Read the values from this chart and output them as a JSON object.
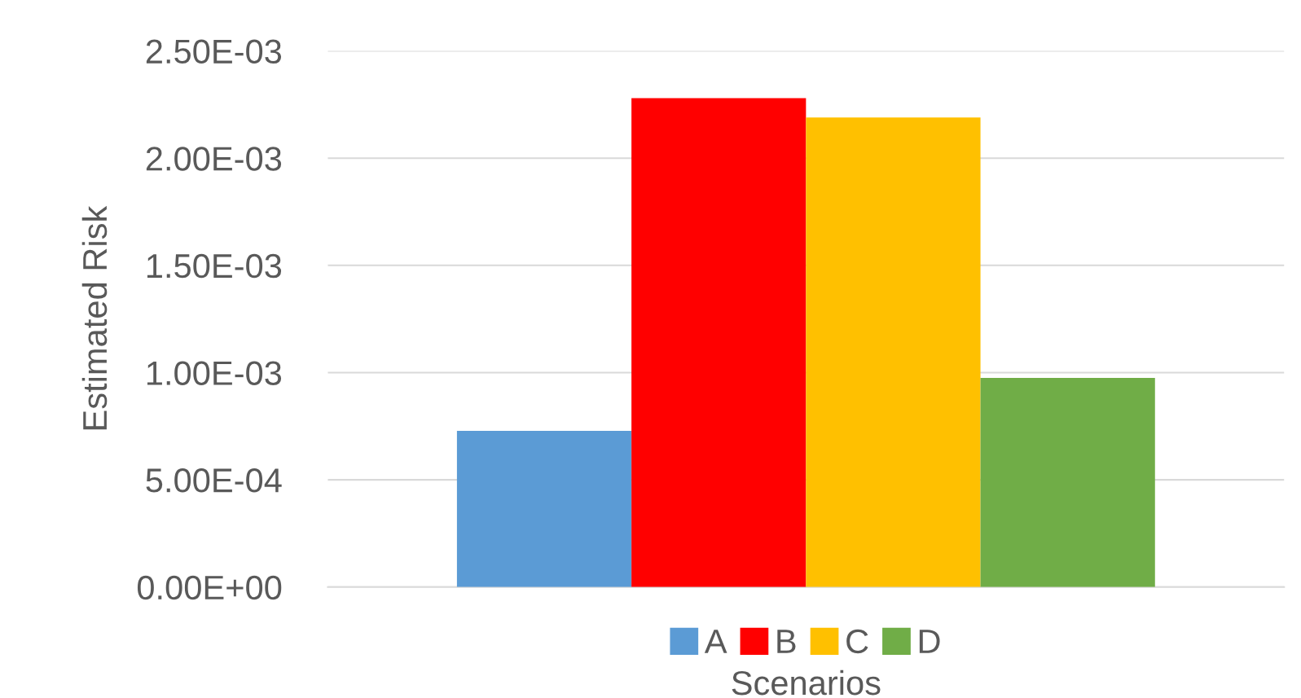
{
  "chart_data": {
    "type": "bar",
    "xlabel": "Scenarios",
    "ylabel": "Estimated Risk",
    "categories": [
      null
    ],
    "series": [
      {
        "name": "A",
        "color": "#5b9bd5",
        "values": [
          0.000728
        ]
      },
      {
        "name": "B",
        "color": "#ff0000",
        "values": [
          0.00228
        ]
      },
      {
        "name": "C",
        "color": "#ffc000",
        "values": [
          0.00219
        ]
      },
      {
        "name": "D",
        "color": "#70ad47",
        "values": [
          0.000975
        ]
      }
    ],
    "ylim": [
      0,
      0.0025
    ],
    "yticks": [
      {
        "value": 0,
        "label": "0.00E+00"
      },
      {
        "value": 0.0005,
        "label": "5.00E-04"
      },
      {
        "value": 0.001,
        "label": "1.00E-03"
      },
      {
        "value": 0.0015,
        "label": "1.50E-03"
      },
      {
        "value": 0.002,
        "label": "2.00E-03"
      },
      {
        "value": 0.0025,
        "label": "2.50E-03"
      }
    ],
    "grid": "y",
    "legend": "bottom"
  }
}
